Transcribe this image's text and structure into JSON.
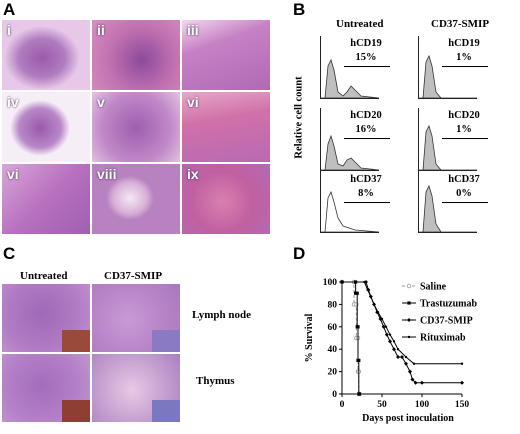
{
  "panels": {
    "A": {
      "letter": "A",
      "tiles": [
        {
          "label": "i"
        },
        {
          "label": "ii"
        },
        {
          "label": "iii"
        },
        {
          "label": "iv"
        },
        {
          "label": "v"
        },
        {
          "label": "vi"
        },
        {
          "label": "vi"
        },
        {
          "label": "viii"
        },
        {
          "label": "ix"
        }
      ]
    },
    "B": {
      "letter": "B",
      "ylabel": "Relative cell count",
      "col_untreated": "Untreated",
      "col_treated": "CD37-SMIP",
      "rows": [
        {
          "marker_untreated": "hCD19",
          "pct_untreated": "15%",
          "marker_treated": "hCD19",
          "pct_treated": "1%"
        },
        {
          "marker_untreated": "hCD20",
          "pct_untreated": "16%",
          "marker_treated": "hCD20",
          "pct_treated": "1%"
        },
        {
          "marker_untreated": "hCD37",
          "pct_untreated": "8%",
          "marker_treated": "hCD37",
          "pct_treated": "0%"
        }
      ]
    },
    "C": {
      "letter": "C",
      "col_untreated": "Untreated",
      "col_treated": "CD37-SMIP",
      "row1": "Lymph node",
      "row2": "Thymus"
    },
    "D": {
      "letter": "D"
    }
  },
  "chart_data": {
    "type": "line",
    "xlabel": "Days post  inoculation",
    "ylabel": "% Survival",
    "xlim": [
      0,
      150
    ],
    "ylim": [
      0,
      100
    ],
    "xticks": [
      "0",
      "50",
      "100",
      "150"
    ],
    "yticks": [
      "0",
      "20",
      "40",
      "60",
      "80",
      "100"
    ],
    "series": [
      {
        "name": "Saline",
        "color": "#999999",
        "x": [
          0,
          15,
          15,
          18,
          18,
          20,
          20,
          21,
          21,
          22
        ],
        "y": [
          100,
          100,
          80,
          80,
          50,
          50,
          20,
          20,
          0,
          0
        ]
      },
      {
        "name": "Trastuzumab",
        "color": "#000000",
        "x": [
          0,
          17,
          17,
          19,
          19,
          20,
          20,
          21,
          21,
          22
        ],
        "y": [
          100,
          100,
          90,
          90,
          60,
          60,
          30,
          30,
          0,
          0
        ]
      },
      {
        "name": "CD37-SMIP",
        "color": "#000000",
        "x": [
          0,
          30,
          33,
          36,
          40,
          44,
          48,
          52,
          56,
          60,
          65,
          70,
          75,
          80,
          85,
          88,
          92,
          100,
          150
        ],
        "y": [
          100,
          100,
          93,
          87,
          80,
          73,
          67,
          60,
          53,
          47,
          40,
          33,
          33,
          27,
          20,
          13,
          10,
          10,
          10
        ]
      },
      {
        "name": "Rituximab",
        "color": "#000000",
        "x": [
          0,
          28,
          32,
          36,
          40,
          45,
          50,
          55,
          60,
          65,
          70,
          80,
          90,
          150
        ],
        "y": [
          100,
          100,
          93,
          87,
          80,
          73,
          67,
          60,
          53,
          47,
          40,
          33,
          27,
          27
        ]
      }
    ]
  }
}
